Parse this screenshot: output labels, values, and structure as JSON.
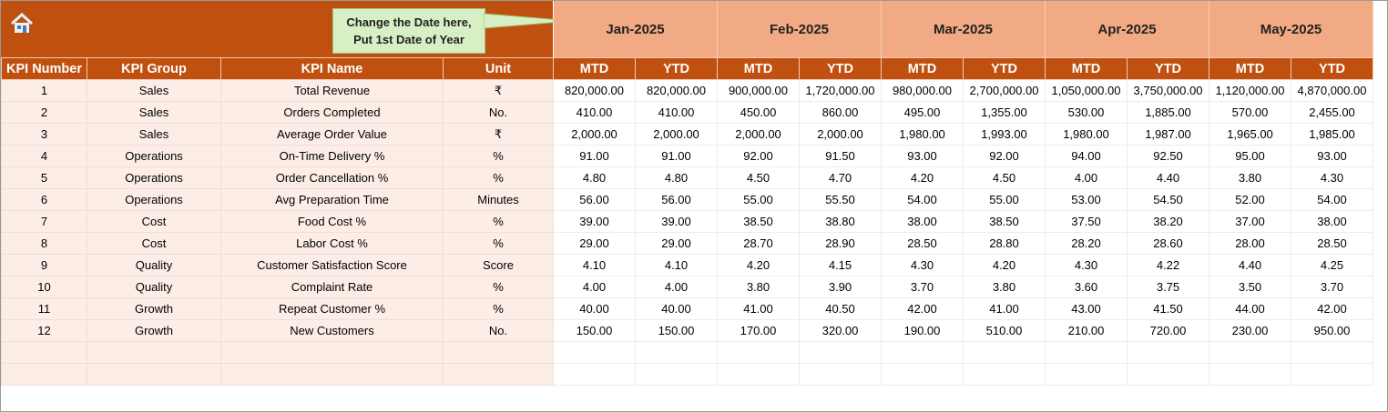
{
  "header": {
    "home_icon": "home-icon",
    "callout": [
      "Change the Date here,",
      "Put 1st Date of Year"
    ],
    "months": [
      "Jan-2025",
      "Feb-2025",
      "Mar-2025",
      "Apr-2025",
      "May-2025"
    ]
  },
  "columns": {
    "fixed": [
      "KPI Number",
      "KPI Group",
      "KPI Name",
      "Unit"
    ],
    "sub": [
      "MTD",
      "YTD"
    ]
  },
  "colors": {
    "header": "#C0500F",
    "month": "#F2AA84",
    "left_cells": "#FDEDE7",
    "callout": "#D8EFC5"
  },
  "rows": [
    {
      "num": "1",
      "group": "Sales",
      "name": "Total Revenue",
      "unit": "₹",
      "values": [
        "820,000.00",
        "820,000.00",
        "900,000.00",
        "1,720,000.00",
        "980,000.00",
        "2,700,000.00",
        "1,050,000.00",
        "3,750,000.00",
        "1,120,000.00",
        "4,870,000.00"
      ]
    },
    {
      "num": "2",
      "group": "Sales",
      "name": "Orders Completed",
      "unit": "No.",
      "values": [
        "410.00",
        "410.00",
        "450.00",
        "860.00",
        "495.00",
        "1,355.00",
        "530.00",
        "1,885.00",
        "570.00",
        "2,455.00"
      ]
    },
    {
      "num": "3",
      "group": "Sales",
      "name": "Average Order Value",
      "unit": "₹",
      "values": [
        "2,000.00",
        "2,000.00",
        "2,000.00",
        "2,000.00",
        "1,980.00",
        "1,993.00",
        "1,980.00",
        "1,987.00",
        "1,965.00",
        "1,985.00"
      ]
    },
    {
      "num": "4",
      "group": "Operations",
      "name": "On-Time Delivery %",
      "unit": "%",
      "values": [
        "91.00",
        "91.00",
        "92.00",
        "91.50",
        "93.00",
        "92.00",
        "94.00",
        "92.50",
        "95.00",
        "93.00"
      ]
    },
    {
      "num": "5",
      "group": "Operations",
      "name": "Order Cancellation %",
      "unit": "%",
      "values": [
        "4.80",
        "4.80",
        "4.50",
        "4.70",
        "4.20",
        "4.50",
        "4.00",
        "4.40",
        "3.80",
        "4.30"
      ]
    },
    {
      "num": "6",
      "group": "Operations",
      "name": "Avg Preparation Time",
      "unit": "Minutes",
      "values": [
        "56.00",
        "56.00",
        "55.00",
        "55.50",
        "54.00",
        "55.00",
        "53.00",
        "54.50",
        "52.00",
        "54.00"
      ]
    },
    {
      "num": "7",
      "group": "Cost",
      "name": "Food Cost %",
      "unit": "%",
      "values": [
        "39.00",
        "39.00",
        "38.50",
        "38.80",
        "38.00",
        "38.50",
        "37.50",
        "38.20",
        "37.00",
        "38.00"
      ]
    },
    {
      "num": "8",
      "group": "Cost",
      "name": "Labor Cost %",
      "unit": "%",
      "values": [
        "29.00",
        "29.00",
        "28.70",
        "28.90",
        "28.50",
        "28.80",
        "28.20",
        "28.60",
        "28.00",
        "28.50"
      ]
    },
    {
      "num": "9",
      "group": "Quality",
      "name": "Customer Satisfaction Score",
      "unit": "Score",
      "values": [
        "4.10",
        "4.10",
        "4.20",
        "4.15",
        "4.30",
        "4.20",
        "4.30",
        "4.22",
        "4.40",
        "4.25"
      ]
    },
    {
      "num": "10",
      "group": "Quality",
      "name": "Complaint Rate",
      "unit": "%",
      "values": [
        "4.00",
        "4.00",
        "3.80",
        "3.90",
        "3.70",
        "3.80",
        "3.60",
        "3.75",
        "3.50",
        "3.70"
      ]
    },
    {
      "num": "11",
      "group": "Growth",
      "name": "Repeat Customer %",
      "unit": "%",
      "values": [
        "40.00",
        "40.00",
        "41.00",
        "40.50",
        "42.00",
        "41.00",
        "43.00",
        "41.50",
        "44.00",
        "42.00"
      ]
    },
    {
      "num": "12",
      "group": "Growth",
      "name": "New Customers",
      "unit": "No.",
      "values": [
        "150.00",
        "150.00",
        "170.00",
        "320.00",
        "190.00",
        "510.00",
        "210.00",
        "720.00",
        "230.00",
        "950.00"
      ]
    }
  ]
}
